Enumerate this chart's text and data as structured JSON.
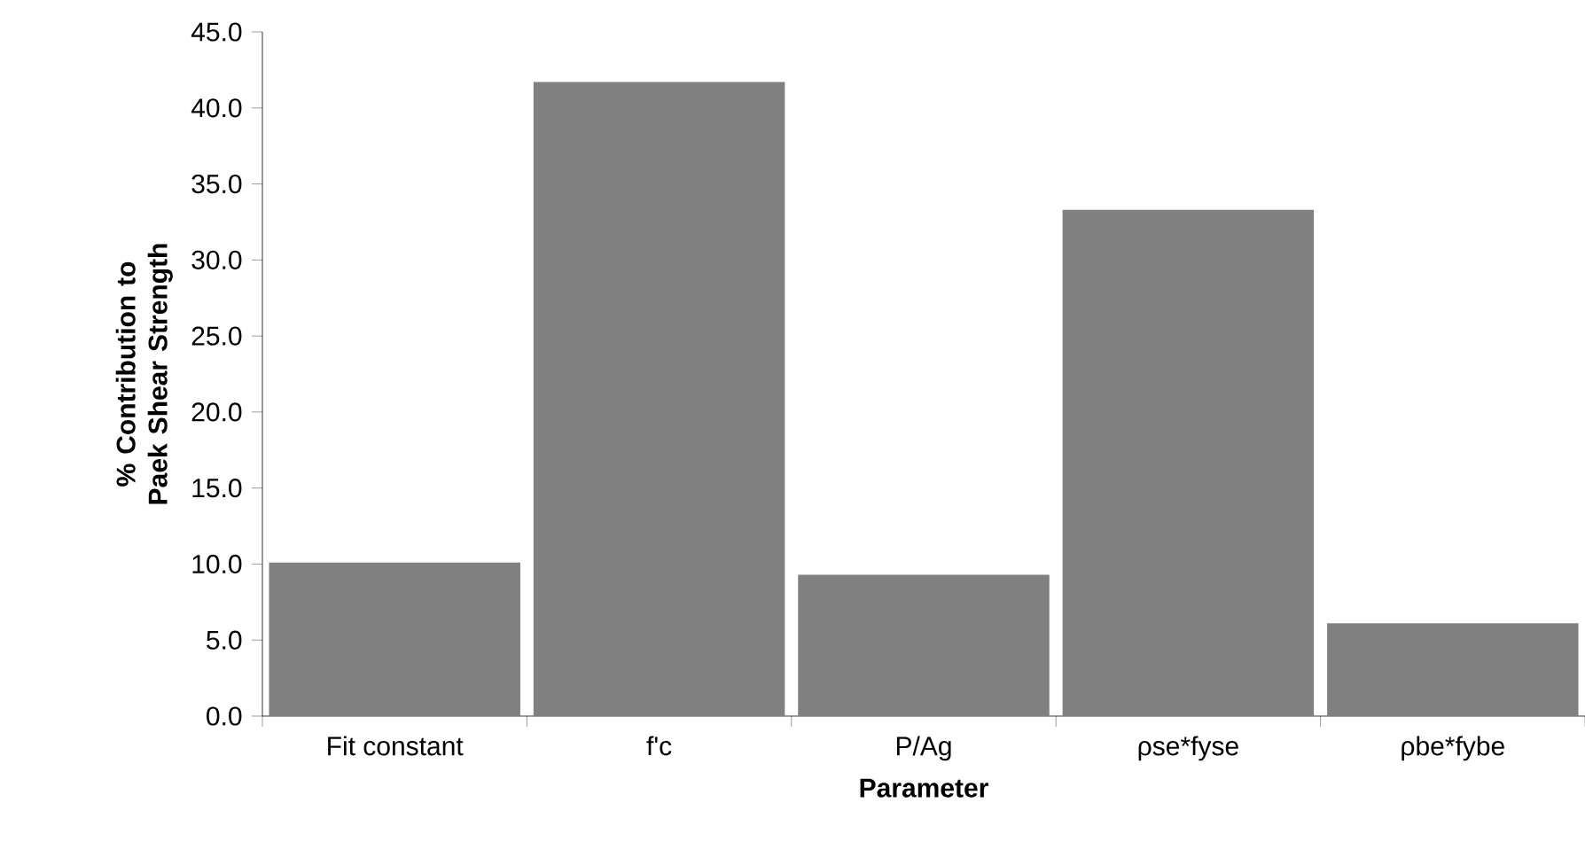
{
  "chart_data": {
    "type": "bar",
    "xlabel": "Parameter",
    "ylabel": "% Contribution to Paek Shear Strength",
    "categories": [
      "Fit constant",
      "f'c",
      "P/Ag",
      "ρse*fyse",
      "ρbe*fybe"
    ],
    "values": [
      10.1,
      41.7,
      9.3,
      33.3,
      6.1
    ],
    "color": "#808080",
    "ylim": [
      0,
      45
    ],
    "yticks": [
      {
        "value": 0,
        "label": "0.0"
      },
      {
        "value": 5,
        "label": "5.0"
      },
      {
        "value": 10,
        "label": "10.0"
      },
      {
        "value": 15,
        "label": "15.0"
      },
      {
        "value": 20,
        "label": "20.0"
      },
      {
        "value": 25,
        "label": "25.0"
      },
      {
        "value": 30,
        "label": "30.0"
      },
      {
        "value": 35,
        "label": "35.0"
      },
      {
        "value": 40,
        "label": "40.0"
      },
      {
        "value": 45,
        "label": "45.0"
      }
    ]
  }
}
